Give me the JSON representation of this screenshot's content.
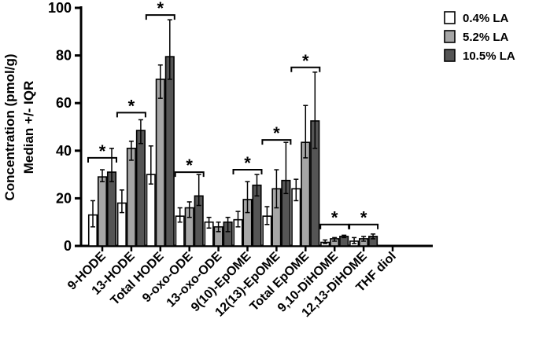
{
  "chart_data": {
    "type": "bar",
    "ylabel_line1": "Concentration (pmol/g)",
    "ylabel_line2": "Median +/- IQR",
    "ylim": [
      0,
      100
    ],
    "yticks": [
      0,
      20,
      40,
      60,
      80,
      100
    ],
    "grid": false,
    "legend_position": "top-right",
    "categories": [
      "9-HODE",
      "13-HODE",
      "Total HODE",
      "9-oxo-ODE",
      "13-oxo-ODE",
      "9(10)-EpOME",
      "12(13)-EpOME",
      "Total EpOME",
      "9,10-DiHOME",
      "12,13-DiHOME",
      "THF diol"
    ],
    "series": [
      {
        "name": "0.4% LA",
        "color": "#ffffff",
        "values": [
          13,
          18,
          30,
          12.5,
          10,
          11,
          12.5,
          24,
          1.5,
          2,
          0
        ],
        "err_low": [
          8,
          14,
          26,
          10,
          7.5,
          8,
          9,
          19,
          1,
          1,
          0
        ],
        "err_high": [
          19,
          23.5,
          42,
          16,
          12,
          14.5,
          16.5,
          28,
          2.5,
          3.5,
          0
        ]
      },
      {
        "name": "5.2% LA",
        "color": "#a6a6a6",
        "values": [
          29,
          41,
          70,
          16,
          8,
          19.5,
          24,
          43.5,
          3,
          3,
          0
        ],
        "err_low": [
          27,
          36,
          62,
          12,
          6,
          14,
          16,
          37,
          2,
          2,
          0
        ],
        "err_high": [
          32,
          44,
          76,
          18.5,
          10,
          27,
          32,
          59,
          3.5,
          4,
          0
        ]
      },
      {
        "name": "10.5% LA",
        "color": "#555555",
        "values": [
          31,
          48.5,
          79.5,
          21,
          10,
          25.5,
          27.5,
          52.5,
          4,
          4,
          0
        ],
        "err_low": [
          27,
          43,
          70,
          17,
          6,
          21,
          22,
          41,
          3.5,
          3,
          0
        ],
        "err_high": [
          41,
          53,
          95,
          30,
          12,
          30,
          43.5,
          73,
          4.5,
          5,
          0
        ]
      }
    ],
    "significance": [
      {
        "category_index": 0,
        "y": 37,
        "label": "*"
      },
      {
        "category_index": 1,
        "y": 56,
        "label": "*"
      },
      {
        "category_index": 2,
        "y": 97,
        "label": "*"
      },
      {
        "category_index": 3,
        "y": 31,
        "label": "*"
      },
      {
        "category_index": 5,
        "y": 32,
        "label": "*"
      },
      {
        "category_index": 6,
        "y": 44.5,
        "label": "*"
      },
      {
        "category_index": 7,
        "y": 75,
        "label": "*"
      },
      {
        "category_index": 8,
        "y": 9,
        "label": "*"
      },
      {
        "category_index": 9,
        "y": 9,
        "label": "*"
      }
    ]
  }
}
